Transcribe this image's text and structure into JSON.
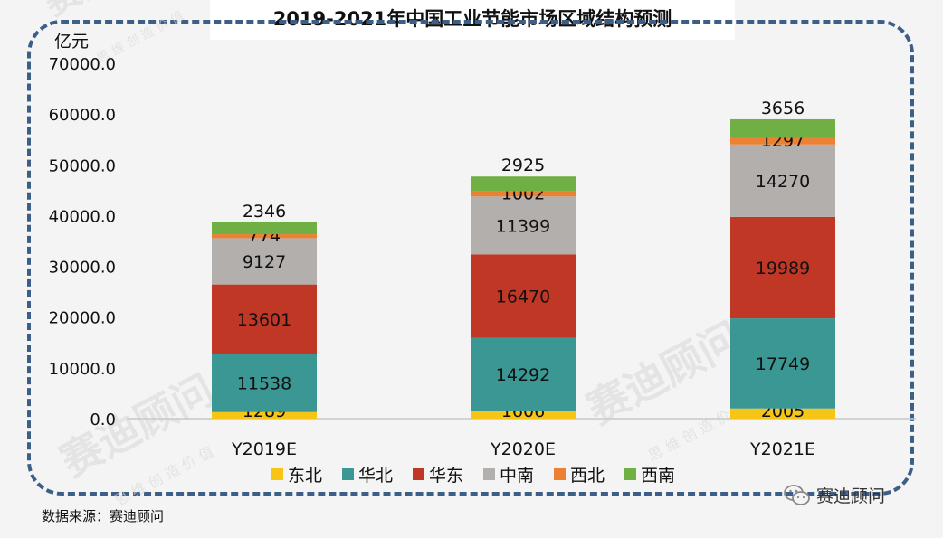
{
  "source_note": "数据来源：赛迪顾问",
  "watermark": {
    "brand": "赛迪顾问",
    "slogan": "思 维 创 造 价 值"
  },
  "wechat": {
    "icon": "wechat-icon",
    "label": "赛迪顾问"
  },
  "colors": {
    "frame": "#3c5f87",
    "dongbei": "#f7c515",
    "huabei": "#3a9794",
    "huadong": "#c03726",
    "zhongnan": "#b3afac",
    "xibei": "#ed8133",
    "xinan": "#6faf43"
  },
  "chart_data": {
    "type": "bar",
    "stacked": true,
    "title": "2019-2021年中国工业节能市场区域结构预测",
    "ylabel": "亿元",
    "xlabel": "",
    "ylim": [
      0,
      70000
    ],
    "yticks": [
      0,
      10000,
      20000,
      30000,
      40000,
      50000,
      60000,
      70000
    ],
    "ytick_labels": [
      "0.0",
      "10000.0",
      "20000.0",
      "30000.0",
      "40000.0",
      "50000.0",
      "60000.0",
      "70000.0"
    ],
    "grid": false,
    "legend_position": "bottom",
    "categories": [
      "Y2019E",
      "Y2020E",
      "Y2021E"
    ],
    "series": [
      {
        "name": "东北",
        "key": "dongbei",
        "values": [
          1289,
          1606,
          2005
        ]
      },
      {
        "name": "华北",
        "key": "huabei",
        "values": [
          11538,
          14292,
          17749
        ]
      },
      {
        "name": "华东",
        "key": "huadong",
        "values": [
          13601,
          16470,
          19989
        ]
      },
      {
        "name": "中南",
        "key": "zhongnan",
        "values": [
          9127,
          11399,
          14270
        ]
      },
      {
        "name": "西北",
        "key": "xibei",
        "values": [
          774,
          1002,
          1297
        ]
      },
      {
        "name": "西南",
        "key": "xinan",
        "values": [
          2346,
          2925,
          3656
        ]
      }
    ]
  }
}
